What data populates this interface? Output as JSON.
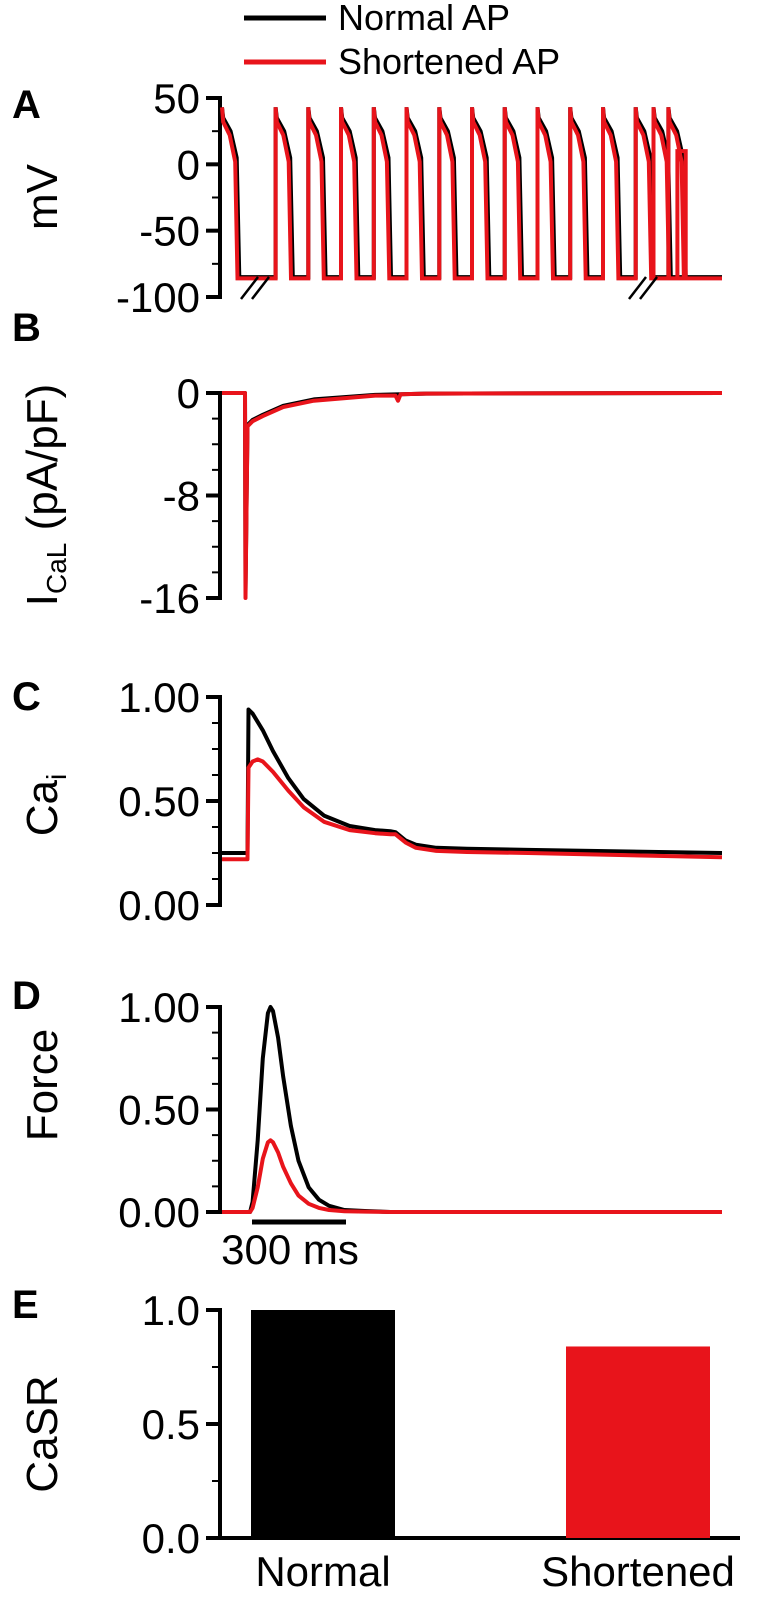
{
  "legend": [
    {
      "label": "Normal AP",
      "color": "#000000"
    },
    {
      "label": "Shortened AP",
      "color": "#e8141b"
    }
  ],
  "scale_bar": {
    "label": "300 ms"
  },
  "chart_data": [
    {
      "id": "A",
      "letter": "A",
      "type": "line",
      "ylabel": "mV",
      "ylim": [
        -100,
        50
      ],
      "yticks": [
        50,
        0,
        -50,
        -100
      ],
      "axis_breaks": 2,
      "series": [
        {
          "name": "Normal AP",
          "color": "#000000",
          "beats": 15,
          "peak": 43,
          "plateau": 25,
          "rest": -85,
          "apd_ms": 330
        },
        {
          "name": "Shortened AP",
          "color": "#e8141b",
          "beats": 15,
          "peak": 43,
          "plateau": 22,
          "rest": -86,
          "apd_ms": 260,
          "final_step_mV": 10
        }
      ]
    },
    {
      "id": "B",
      "letter": "B",
      "type": "line",
      "ylabel": "I",
      "ylabel_sub": "CaL",
      "ylabel_tail": " (pA/pF)",
      "ylim": [
        -16,
        0
      ],
      "yticks": [
        0,
        -8,
        -16
      ],
      "series": [
        {
          "name": "Normal AP",
          "color": "#000000",
          "x": [
            0,
            45,
            46,
            50,
            60,
            80,
            120,
            180,
            300,
            400,
            980
          ],
          "y": [
            0,
            0,
            -15.5,
            -2.5,
            -2.1,
            -1.7,
            -1.0,
            -0.5,
            -0.15,
            -0.05,
            0
          ]
        },
        {
          "name": "Shortened AP",
          "color": "#e8141b",
          "x": [
            0,
            45,
            46,
            50,
            60,
            80,
            120,
            180,
            300,
            340,
            345,
            350,
            400,
            980
          ],
          "y": [
            0,
            0,
            -16,
            -2.6,
            -2.2,
            -1.8,
            -1.1,
            -0.6,
            -0.2,
            -0.2,
            -0.6,
            -0.1,
            -0.05,
            0
          ]
        }
      ]
    },
    {
      "id": "C",
      "letter": "C",
      "type": "line",
      "ylabel": "Ca",
      "ylabel_sub": "i",
      "ylim": [
        0,
        1
      ],
      "yticks": [
        "0.00",
        "0.50",
        "1.00"
      ],
      "series": [
        {
          "name": "Normal AP",
          "color": "#000000",
          "x": [
            0,
            50,
            52,
            60,
            80,
            100,
            130,
            160,
            200,
            250,
            300,
            330,
            340,
            360,
            380,
            420,
            480,
            600,
            980
          ],
          "y": [
            0.25,
            0.25,
            0.94,
            0.92,
            0.84,
            0.74,
            0.61,
            0.51,
            0.43,
            0.38,
            0.36,
            0.355,
            0.35,
            0.31,
            0.29,
            0.275,
            0.27,
            0.265,
            0.25
          ]
        },
        {
          "name": "Shortened AP",
          "color": "#e8141b",
          "x": [
            0,
            50,
            52,
            60,
            70,
            80,
            100,
            130,
            160,
            200,
            250,
            300,
            330,
            340,
            360,
            380,
            420,
            480,
            600,
            980
          ],
          "y": [
            0.22,
            0.22,
            0.66,
            0.69,
            0.7,
            0.69,
            0.64,
            0.55,
            0.47,
            0.4,
            0.36,
            0.345,
            0.34,
            0.34,
            0.3,
            0.275,
            0.26,
            0.255,
            0.25,
            0.23
          ]
        }
      ]
    },
    {
      "id": "D",
      "letter": "D",
      "type": "line",
      "ylabel": "Force",
      "ylim": [
        0,
        1
      ],
      "yticks": [
        "0.00",
        "0.50",
        "1.00"
      ],
      "series": [
        {
          "name": "Normal AP",
          "color": "#000000",
          "x": [
            0,
            55,
            60,
            70,
            80,
            90,
            95,
            100,
            110,
            120,
            135,
            150,
            170,
            190,
            210,
            240,
            280,
            330,
            980
          ],
          "y": [
            0,
            0,
            0.05,
            0.35,
            0.75,
            0.97,
            1.0,
            0.98,
            0.85,
            0.66,
            0.42,
            0.25,
            0.12,
            0.06,
            0.03,
            0.01,
            0.005,
            0,
            0
          ]
        },
        {
          "name": "Shortened AP",
          "color": "#e8141b",
          "x": [
            0,
            55,
            60,
            70,
            80,
            90,
            95,
            100,
            110,
            120,
            135,
            150,
            170,
            190,
            210,
            240,
            280,
            330,
            980
          ],
          "y": [
            0,
            0,
            0.02,
            0.12,
            0.26,
            0.34,
            0.35,
            0.34,
            0.29,
            0.22,
            0.14,
            0.08,
            0.04,
            0.02,
            0.01,
            0.004,
            0.002,
            0,
            0
          ]
        }
      ]
    },
    {
      "id": "E",
      "letter": "E",
      "type": "bar",
      "ylabel": "CaSR",
      "ylim": [
        0,
        1
      ],
      "yticks": [
        "0.0",
        "0.5",
        "1.0"
      ],
      "categories": [
        "Normal",
        "Shortened"
      ],
      "values": [
        1.0,
        0.84
      ],
      "colors": [
        "#000000",
        "#e8141b"
      ]
    }
  ]
}
